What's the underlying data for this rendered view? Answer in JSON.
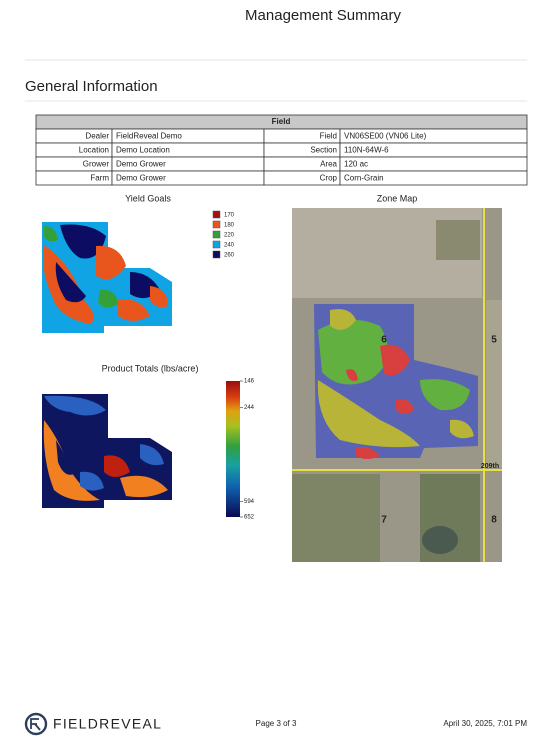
{
  "header": {
    "title": "Management Summary"
  },
  "section": {
    "title": "General Information"
  },
  "table": {
    "title": "Field",
    "rows": [
      [
        "Dealer",
        "FieldReveal Demo",
        "Field",
        "VN06SE00 (VN06 Lite)"
      ],
      [
        "Location",
        "Demo Location",
        "Section",
        "110N-64W-6"
      ],
      [
        "Grower",
        "Demo Grower",
        "Area",
        "120 ac"
      ],
      [
        "Farm",
        "Demo Grower",
        "Crop",
        "Corn-Grain"
      ]
    ]
  },
  "yield_goals": {
    "title": "Yield Goals",
    "legend": [
      {
        "label": 170,
        "color": "#a81010"
      },
      {
        "label": 180,
        "color": "#e8561e"
      },
      {
        "label": 220,
        "color": "#34a038"
      },
      {
        "label": 240,
        "color": "#10a4e4"
      },
      {
        "label": 260,
        "color": "#0c0c62"
      }
    ]
  },
  "product_totals": {
    "title": "Product Totals (lbs/acre)",
    "scale": [
      146,
      244,
      594,
      652
    ]
  },
  "zone_map": {
    "title": "Zone Map",
    "labels": [
      "6",
      "5",
      "7",
      "8",
      "209th"
    ]
  },
  "footer": {
    "logo": "FIELDREVEAL",
    "page": "Page 3 of 3",
    "date": "April 30, 2025, 7:01 PM"
  }
}
